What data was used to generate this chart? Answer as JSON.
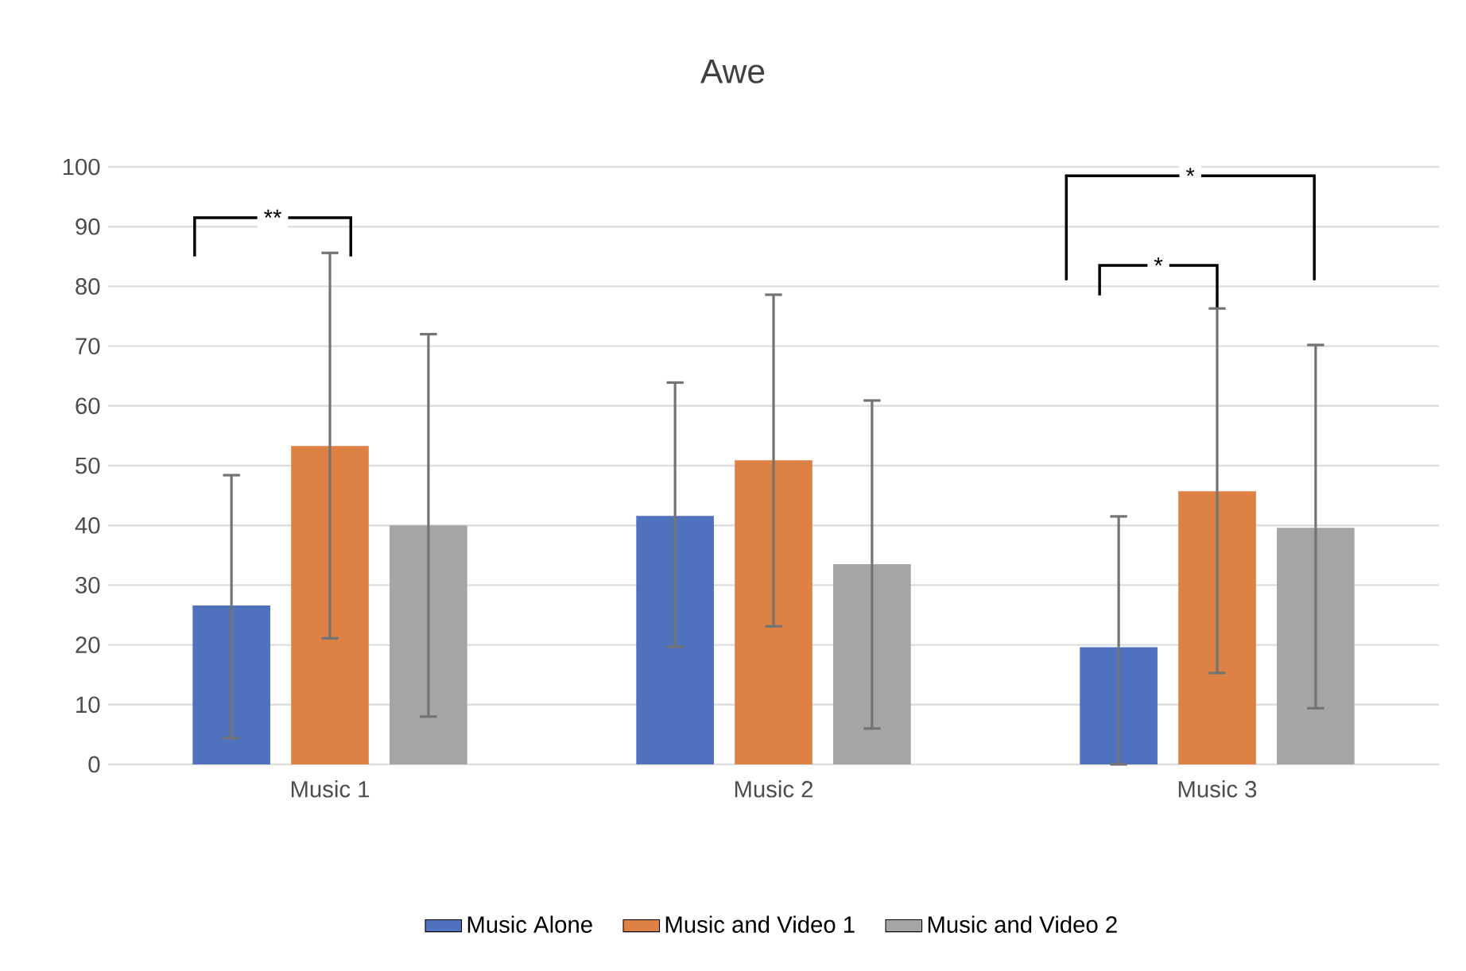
{
  "chart_data": {
    "type": "bar",
    "title": "Awe",
    "categories": [
      "Music 1",
      "Music 2",
      "Music 3"
    ],
    "series": [
      {
        "name": "Music Alone",
        "color": "#4f71be",
        "values": [
          26.6,
          41.6,
          19.6
        ],
        "errors": [
          [
            4.4,
            48.4
          ],
          [
            19.7,
            63.9
          ],
          [
            0,
            41.5
          ]
        ]
      },
      {
        "name": "Music and Video 1",
        "color": "#dd8244",
        "values": [
          53.3,
          50.9,
          45.7
        ],
        "errors": [
          [
            21.1,
            85.6
          ],
          [
            23.1,
            78.6
          ],
          [
            15.3,
            76.3
          ]
        ]
      },
      {
        "name": "Music and Video 2",
        "color": "#a5a5a5",
        "values": [
          40,
          33.5,
          39.6
        ],
        "errors": [
          [
            8,
            72
          ],
          [
            6,
            60.9
          ],
          [
            9.4,
            70.2
          ]
        ]
      }
    ],
    "ylim": [
      0,
      100
    ],
    "yticks": [
      0,
      10,
      20,
      30,
      40,
      50,
      60,
      70,
      80,
      90,
      100
    ],
    "grid": "y",
    "legend": "bottom",
    "annotations": [
      "**",
      "*",
      "*"
    ]
  }
}
